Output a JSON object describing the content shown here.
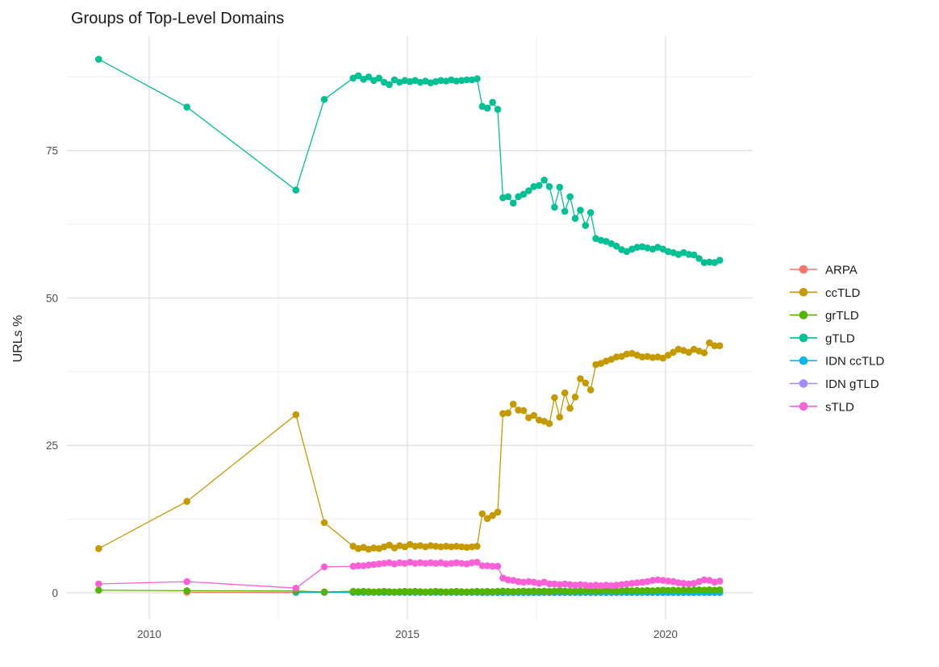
{
  "chart_data": {
    "type": "scatter",
    "title": "Groups of Top-Level Domains",
    "ylabel": "URLs %",
    "xlabel": "",
    "legend_position": "right",
    "background": "#FFFFFF",
    "grid": true,
    "axes": {
      "x_ticks": [
        2010,
        2015,
        2020
      ],
      "x_minor": [
        2012.5,
        2017.5
      ],
      "y_ticks": [
        0,
        25,
        50,
        75
      ],
      "y_minor": [
        12.5,
        37.5,
        62.5,
        87.5
      ],
      "xlim": [
        2008.4,
        2021.7
      ],
      "ylim": [
        -4.5,
        94.4
      ]
    },
    "x": [
      2009.02,
      2010.73,
      2012.84,
      2013.39,
      2013.95,
      2014.05,
      2014.15,
      2014.25,
      2014.35,
      2014.45,
      2014.55,
      2014.65,
      2014.75,
      2014.85,
      2014.95,
      2015.05,
      2015.15,
      2015.25,
      2015.35,
      2015.45,
      2015.55,
      2015.65,
      2015.75,
      2015.85,
      2015.95,
      2016.05,
      2016.15,
      2016.25,
      2016.35,
      2016.45,
      2016.55,
      2016.65,
      2016.75,
      2016.85,
      2016.95,
      2017.05,
      2017.15,
      2017.25,
      2017.35,
      2017.45,
      2017.55,
      2017.65,
      2017.75,
      2017.85,
      2017.95,
      2018.05,
      2018.15,
      2018.25,
      2018.35,
      2018.45,
      2018.55,
      2018.65,
      2018.75,
      2018.85,
      2018.95,
      2019.05,
      2019.15,
      2019.25,
      2019.35,
      2019.45,
      2019.55,
      2019.65,
      2019.75,
      2019.85,
      2019.95,
      2020.05,
      2020.15,
      2020.25,
      2020.35,
      2020.45,
      2020.55,
      2020.65,
      2020.75,
      2020.85,
      2020.95,
      2021.05
    ],
    "series": [
      {
        "name": "ARPA",
        "color": "#F8766D",
        "start": 1,
        "values": [
          0.1,
          0.05,
          0.05,
          0.05,
          0.05,
          0.05,
          0.05,
          0.05,
          0.05,
          0.05,
          0.05,
          0.05,
          0.05,
          0.05,
          0.05,
          0.05,
          0.05,
          0.05,
          0.05,
          0.05,
          0.05,
          0.05,
          0.05,
          0.05,
          0.05,
          0.05,
          0.05,
          0.05,
          0.05,
          0.05,
          0.05,
          0.05,
          0.05,
          0.05,
          0.05,
          0.05,
          0.05,
          0.05,
          0.05,
          0.05,
          0.05,
          0.05,
          0.05,
          0.05,
          0.05,
          0.05,
          0.05,
          0.05,
          0.05,
          0.05,
          0.05,
          0.05,
          0.05,
          0.05,
          0.05,
          0.05,
          0.05,
          0.05,
          0.05,
          0.05,
          0.05,
          0.05,
          0.05,
          0.05,
          0.05,
          0.05,
          0.05,
          0.05,
          0.05,
          0.05,
          0.05,
          0.05,
          0.05,
          0.05,
          0.05
        ]
      },
      {
        "name": "IDN gTLD",
        "color": "#A58AFF",
        "start": 29,
        "values": [
          0.03,
          0.03,
          0.03,
          0.03,
          0.03,
          0.03,
          0.03,
          0.03,
          0.03,
          0.03,
          0.03,
          0.03,
          0.03,
          0.03,
          0.03,
          0.03,
          0.03,
          0.03,
          0.03,
          0.03,
          0.03,
          0.03,
          0.03,
          0.03,
          0.03,
          0.03,
          0.03,
          0.03,
          0.03,
          0.03,
          0.03,
          0.03,
          0.03,
          0.03,
          0.03,
          0.03,
          0.03,
          0.03,
          0.03,
          0.03,
          0.03,
          0.03,
          0.03,
          0.03,
          0.03,
          0.03,
          0.03
        ]
      },
      {
        "name": "IDN ccTLD",
        "color": "#00B6EB",
        "start": 2,
        "values": [
          0.1,
          0.1,
          0.1,
          0.1,
          0.1,
          0.1,
          0.1,
          0.1,
          0.1,
          0.1,
          0.1,
          0.1,
          0.1,
          0.1,
          0.1,
          0.1,
          0.1,
          0.1,
          0.1,
          0.1,
          0.1,
          0.1,
          0.1,
          0.1,
          0.1,
          0.1,
          0.1,
          0.1,
          0.1,
          0.1,
          0.1,
          0.1,
          0.1,
          0.1,
          0.1,
          0.1,
          0.1,
          0.1,
          0.1,
          0.1,
          0.1,
          0.1,
          0.1,
          0.1,
          0.1,
          0.1,
          0.1,
          0.1,
          0.1,
          0.1,
          0.1,
          0.1,
          0.1,
          0.1,
          0.1,
          0.1,
          0.1,
          0.1,
          0.1,
          0.1,
          0.1,
          0.1,
          0.1,
          0.1,
          0.1,
          0.1,
          0.1,
          0.1,
          0.1,
          0.1,
          0.1,
          0.1,
          0.1,
          0.1
        ]
      },
      {
        "name": "ccTLD",
        "color": "#C49A00",
        "start": 0,
        "values": [
          7.5,
          15.5,
          30.2,
          11.9,
          7.9,
          7.5,
          7.7,
          7.4,
          7.6,
          7.5,
          7.8,
          8.1,
          7.6,
          8.0,
          7.8,
          8.2,
          7.9,
          8.0,
          7.8,
          8.0,
          7.9,
          7.8,
          7.9,
          7.8,
          7.9,
          7.8,
          7.7,
          7.8,
          7.9,
          13.4,
          12.6,
          13.1,
          13.7,
          30.4,
          30.5,
          32.0,
          31.0,
          30.9,
          29.7,
          30.1,
          29.3,
          29.1,
          28.7,
          33.1,
          29.8,
          33.9,
          31.3,
          33.2,
          36.3,
          35.6,
          34.4,
          38.7,
          38.9,
          39.3,
          39.6,
          40.0,
          40.1,
          40.5,
          40.6,
          40.3,
          40.0,
          40.1,
          39.9,
          40.0,
          39.8,
          40.3,
          40.8,
          41.3,
          41.1,
          40.8,
          41.3,
          41.0,
          40.7,
          42.4,
          41.9,
          41.9
        ]
      },
      {
        "name": "gTLD",
        "color": "#00C094",
        "start": 0,
        "values": [
          90.5,
          82.4,
          68.3,
          83.7,
          87.3,
          87.7,
          87.1,
          87.5,
          86.9,
          87.3,
          86.6,
          86.2,
          87.0,
          86.6,
          86.9,
          86.7,
          86.9,
          86.6,
          86.8,
          86.5,
          86.7,
          86.9,
          86.8,
          87.0,
          86.8,
          86.9,
          87.0,
          87.0,
          87.2,
          82.5,
          82.2,
          83.2,
          82.0,
          67.0,
          67.2,
          66.1,
          67.2,
          67.6,
          68.2,
          68.9,
          69.1,
          70.0,
          68.9,
          65.4,
          68.8,
          64.7,
          67.2,
          63.5,
          64.9,
          62.3,
          64.5,
          60.1,
          59.8,
          59.6,
          59.2,
          58.8,
          58.2,
          57.9,
          58.3,
          58.6,
          58.7,
          58.5,
          58.3,
          58.6,
          58.3,
          57.9,
          57.7,
          57.4,
          57.7,
          57.4,
          57.3,
          56.7,
          56.0,
          56.1,
          56.0,
          56.4
        ]
      },
      {
        "name": "grTLD",
        "color": "#53B400",
        "start": 0,
        "values": [
          0.45,
          0.35,
          0.3,
          0.15,
          0.25,
          0.2,
          0.25,
          0.2,
          0.15,
          0.2,
          0.25,
          0.2,
          0.15,
          0.2,
          0.25,
          0.2,
          0.25,
          0.2,
          0.15,
          0.2,
          0.25,
          0.2,
          0.15,
          0.2,
          0.25,
          0.2,
          0.15,
          0.2,
          0.25,
          0.2,
          0.25,
          0.2,
          0.25,
          0.3,
          0.25,
          0.2,
          0.25,
          0.3,
          0.25,
          0.3,
          0.25,
          0.3,
          0.25,
          0.3,
          0.35,
          0.3,
          0.25,
          0.3,
          0.35,
          0.3,
          0.35,
          0.3,
          0.35,
          0.4,
          0.35,
          0.3,
          0.35,
          0.4,
          0.35,
          0.4,
          0.35,
          0.4,
          0.35,
          0.4,
          0.45,
          0.4,
          0.45,
          0.4,
          0.45,
          0.4,
          0.45,
          0.5,
          0.45,
          0.5,
          0.45,
          0.5
        ]
      },
      {
        "name": "sTLD",
        "color": "#FB61D7",
        "start": 0,
        "values": [
          1.5,
          1.9,
          0.8,
          4.4,
          4.5,
          4.6,
          4.6,
          4.7,
          4.8,
          4.9,
          5.0,
          5.1,
          4.9,
          5.1,
          5.0,
          5.2,
          5.0,
          5.1,
          5.0,
          5.1,
          5.0,
          5.1,
          4.9,
          5.0,
          5.1,
          5.0,
          4.9,
          5.1,
          5.2,
          4.6,
          4.6,
          4.5,
          4.5,
          2.5,
          2.2,
          2.1,
          1.9,
          1.8,
          1.9,
          1.8,
          1.6,
          1.8,
          1.5,
          1.5,
          1.4,
          1.5,
          1.4,
          1.3,
          1.4,
          1.3,
          1.2,
          1.3,
          1.2,
          1.3,
          1.2,
          1.3,
          1.4,
          1.5,
          1.6,
          1.7,
          1.8,
          1.9,
          2.1,
          2.2,
          2.1,
          2.0,
          1.9,
          1.7,
          1.6,
          1.5,
          1.6,
          1.9,
          2.2,
          2.1,
          1.8,
          2.0
        ]
      }
    ],
    "legend": {
      "items": [
        {
          "label": "ARPA",
          "color": "#F8766D"
        },
        {
          "label": "ccTLD",
          "color": "#C49A00"
        },
        {
          "label": "grTLD",
          "color": "#53B400"
        },
        {
          "label": "gTLD",
          "color": "#00C094"
        },
        {
          "label": "IDN ccTLD",
          "color": "#00B6EB"
        },
        {
          "label": "IDN gTLD",
          "color": "#A58AFF"
        },
        {
          "label": "sTLD",
          "color": "#FB61D7"
        }
      ]
    }
  }
}
